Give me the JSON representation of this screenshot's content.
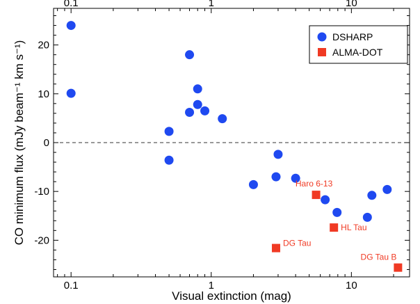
{
  "chart_data": {
    "type": "scatter",
    "title": "",
    "xlabel": "Visual extinction (mag)",
    "ylabel": "CO minimum flux (mJy beam⁻¹ km s⁻¹)",
    "xscale": "log",
    "xlim": [
      0.075,
      26
    ],
    "ylim": [
      -27.5,
      27.5
    ],
    "grid": false,
    "legend_position": "top-right",
    "x_ticks": [
      {
        "value": 0.1,
        "label": "0.1"
      },
      {
        "value": 1,
        "label": "1"
      },
      {
        "value": 10,
        "label": "10"
      }
    ],
    "y_ticks": [
      {
        "value": -20,
        "label": "-20"
      },
      {
        "value": -10,
        "label": "-10"
      },
      {
        "value": 0,
        "label": "0"
      },
      {
        "value": 10,
        "label": "10"
      },
      {
        "value": 20,
        "label": "20"
      }
    ],
    "reference_line": {
      "y": 0,
      "style": "dashed"
    },
    "series": [
      {
        "name": "DSHARP",
        "marker": "circle",
        "color": "#1f49f0",
        "points": [
          {
            "x": 0.1,
            "y": 24.0
          },
          {
            "x": 0.1,
            "y": 10.1
          },
          {
            "x": 0.5,
            "y": 2.3
          },
          {
            "x": 0.5,
            "y": -3.6
          },
          {
            "x": 0.7,
            "y": 18.0
          },
          {
            "x": 0.7,
            "y": 6.2
          },
          {
            "x": 0.8,
            "y": 11.0
          },
          {
            "x": 0.8,
            "y": 7.8
          },
          {
            "x": 0.9,
            "y": 6.5
          },
          {
            "x": 1.2,
            "y": 4.9
          },
          {
            "x": 2.0,
            "y": -8.6
          },
          {
            "x": 2.9,
            "y": -7.0
          },
          {
            "x": 3.0,
            "y": -2.4
          },
          {
            "x": 4.0,
            "y": -7.3
          },
          {
            "x": 6.5,
            "y": -11.7
          },
          {
            "x": 7.9,
            "y": -14.3
          },
          {
            "x": 13.0,
            "y": -15.3
          },
          {
            "x": 14.0,
            "y": -10.8
          },
          {
            "x": 18.0,
            "y": -9.6
          }
        ]
      },
      {
        "name": "ALMA-DOT",
        "marker": "square",
        "color": "#f03a24",
        "points": [
          {
            "x": 2.9,
            "y": -21.6,
            "label": "DG Tau"
          },
          {
            "x": 5.6,
            "y": -10.7,
            "label": "Haro 6-13"
          },
          {
            "x": 7.5,
            "y": -17.4,
            "label": "HL Tau"
          },
          {
            "x": 21.5,
            "y": -25.6,
            "label": "DG Tau B"
          }
        ]
      }
    ]
  }
}
